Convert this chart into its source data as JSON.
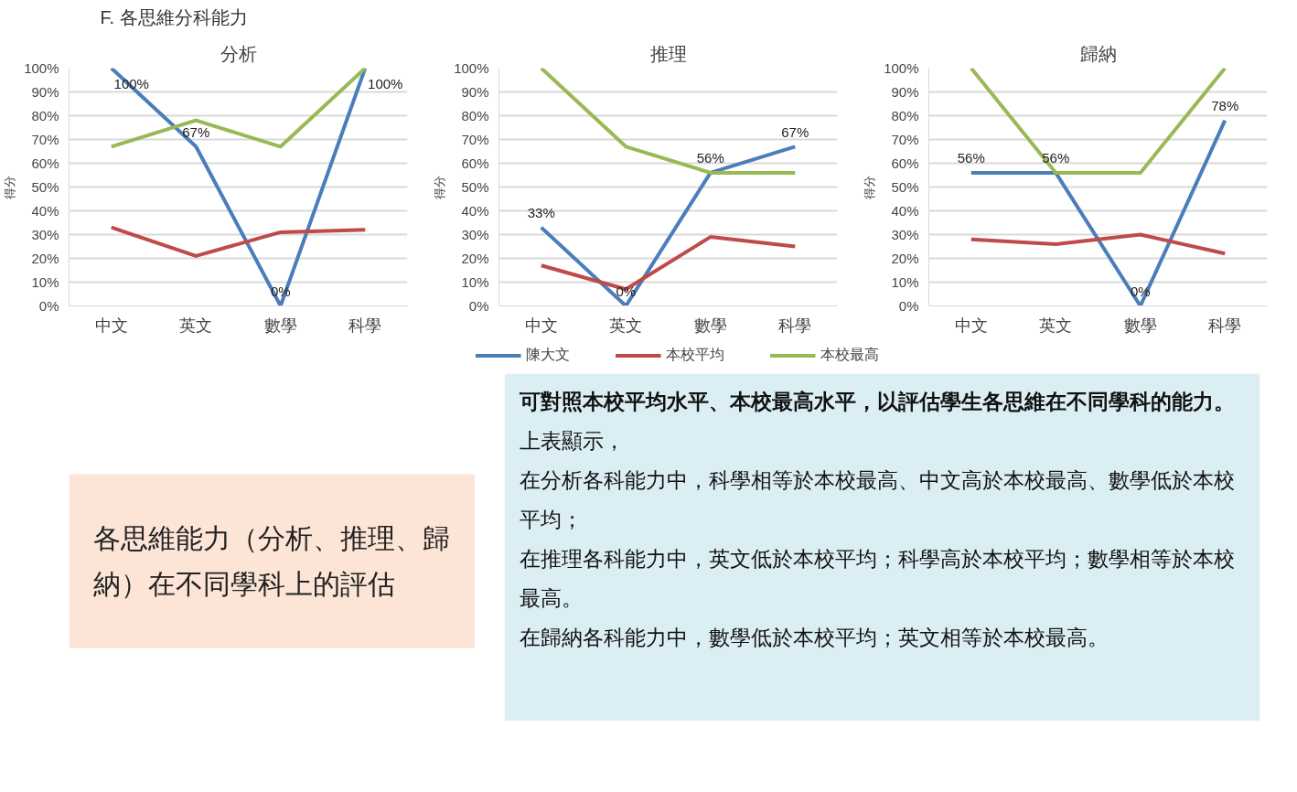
{
  "chart_data": [
    {
      "type": "line",
      "title": "分析",
      "ylabel": "得分",
      "categories": [
        "中文",
        "英文",
        "數學",
        "科學"
      ],
      "ylim": [
        0,
        100
      ],
      "yticks": [
        {
          "value": 0,
          "label": "0%"
        },
        {
          "value": 10,
          "label": "10%"
        },
        {
          "value": 20,
          "label": "20%"
        },
        {
          "value": 30,
          "label": "30%"
        },
        {
          "value": 40,
          "label": "40%"
        },
        {
          "value": 50,
          "label": "50%"
        },
        {
          "value": 60,
          "label": "60%"
        },
        {
          "value": 70,
          "label": "70%"
        },
        {
          "value": 80,
          "label": "80%"
        },
        {
          "value": 90,
          "label": "90%"
        },
        {
          "value": 100,
          "label": "100%"
        }
      ],
      "grid": "y",
      "line_style": "solid",
      "series": [
        {
          "color": "#4a7ebb",
          "values": [
            100,
            67,
            0,
            100
          ],
          "value_labels": [
            "100%",
            "67%",
            "0%",
            "100%"
          ]
        },
        {
          "color": "#be4b48",
          "values": [
            33,
            21,
            31,
            32
          ]
        },
        {
          "color": "#98b954",
          "values": [
            67,
            78,
            67,
            100
          ]
        }
      ]
    },
    {
      "type": "line",
      "title": "推理",
      "ylabel": "得分",
      "categories": [
        "中文",
        "英文",
        "數學",
        "科學"
      ],
      "ylim": [
        0,
        100
      ],
      "yticks": [
        {
          "value": 0,
          "label": "0%"
        },
        {
          "value": 10,
          "label": "10%"
        },
        {
          "value": 20,
          "label": "20%"
        },
        {
          "value": 30,
          "label": "30%"
        },
        {
          "value": 40,
          "label": "40%"
        },
        {
          "value": 50,
          "label": "50%"
        },
        {
          "value": 60,
          "label": "60%"
        },
        {
          "value": 70,
          "label": "70%"
        },
        {
          "value": 80,
          "label": "80%"
        },
        {
          "value": 90,
          "label": "90%"
        },
        {
          "value": 100,
          "label": "100%"
        }
      ],
      "grid": "y",
      "line_style": "solid",
      "legend": "bottom",
      "series": [
        {
          "name": "陳大文",
          "color": "#4a7ebb",
          "values": [
            33,
            0,
            56,
            67
          ],
          "value_labels": [
            "33%",
            "0%",
            "56%",
            "67%"
          ]
        },
        {
          "name": "本校平均",
          "color": "#be4b48",
          "values": [
            17,
            7,
            29,
            25
          ]
        },
        {
          "name": "本校最高",
          "color": "#98b954",
          "values": [
            100,
            67,
            56,
            56
          ]
        }
      ]
    },
    {
      "type": "line",
      "title": "歸納",
      "ylabel": "得分",
      "categories": [
        "中文",
        "英文",
        "數學",
        "科學"
      ],
      "ylim": [
        0,
        100
      ],
      "yticks": [
        {
          "value": 0,
          "label": "0%"
        },
        {
          "value": 10,
          "label": "10%"
        },
        {
          "value": 20,
          "label": "20%"
        },
        {
          "value": 30,
          "label": "30%"
        },
        {
          "value": 40,
          "label": "40%"
        },
        {
          "value": 50,
          "label": "50%"
        },
        {
          "value": 60,
          "label": "60%"
        },
        {
          "value": 70,
          "label": "70%"
        },
        {
          "value": 80,
          "label": "80%"
        },
        {
          "value": 90,
          "label": "90%"
        },
        {
          "value": 100,
          "label": "100%"
        }
      ],
      "grid": "y",
      "line_style": "solid",
      "series": [
        {
          "color": "#4a7ebb",
          "values": [
            56,
            56,
            0,
            78
          ],
          "value_labels": [
            "56%",
            "56%",
            "0%",
            "78%"
          ]
        },
        {
          "color": "#be4b48",
          "values": [
            28,
            26,
            30,
            22
          ]
        },
        {
          "color": "#98b954",
          "values": [
            100,
            56,
            56,
            100
          ]
        }
      ]
    },
    {
      "type": "other",
      "title": "F. 各思維分科能力",
      "annotations": [
        "各思維能力（分析、推理、歸納）在不同學科上的評估",
        "可對照本校平均水平、本校最高水平，以評估學生各思維在不同學科的能力。",
        "上表顯示，",
        "在分析各科能力中，科學相等於本校最高、中文高於本校最高、數學低於本校平均；",
        "在推理各科能力中，英文低於本校平均；科學高於本校平均；數學相等於本校最高。",
        "在歸納各科能力中，數學低於本校平均；英文相等於本校最高。"
      ]
    }
  ]
}
